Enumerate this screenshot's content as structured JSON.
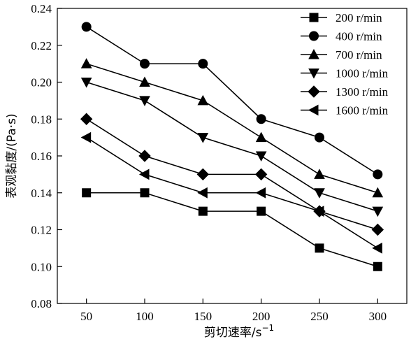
{
  "chart_data": {
    "type": "line",
    "xlabel": "剪切速率/s",
    "xlabel_sup": "−1",
    "ylabel": "表观黏度/(Pa·s)",
    "xlim": [
      25,
      325
    ],
    "ylim": [
      0.08,
      0.24
    ],
    "x": [
      50,
      100,
      150,
      200,
      250,
      300
    ],
    "x_tick_labels": [
      "50",
      "100",
      "150",
      "200",
      "250",
      "300"
    ],
    "y_ticks": [
      0.08,
      0.1,
      0.12,
      0.14,
      0.16,
      0.18,
      0.2,
      0.22,
      0.24
    ],
    "y_tick_labels": [
      "0.08",
      "0.10",
      "0.12",
      "0.14",
      "0.16",
      "0.18",
      "0.20",
      "0.22",
      "0.24"
    ],
    "grid": false,
    "legend_position": "top-right",
    "series": [
      {
        "name": "200 r/min",
        "marker": "square",
        "values": [
          0.14,
          0.14,
          0.13,
          0.13,
          0.11,
          0.1
        ]
      },
      {
        "name": "400 r/min",
        "marker": "circle",
        "values": [
          0.23,
          0.21,
          0.21,
          0.18,
          0.17,
          0.15
        ]
      },
      {
        "name": "700 r/min",
        "marker": "triangle-up",
        "values": [
          0.21,
          0.2,
          0.19,
          0.17,
          0.15,
          0.14
        ]
      },
      {
        "name": "1000 r/min",
        "marker": "triangle-down",
        "values": [
          0.2,
          0.19,
          0.17,
          0.16,
          0.14,
          0.13
        ]
      },
      {
        "name": "1300 r/min",
        "marker": "diamond",
        "values": [
          0.18,
          0.16,
          0.15,
          0.15,
          0.13,
          0.12
        ]
      },
      {
        "name": "1600 r/min",
        "marker": "triangle-left",
        "values": [
          0.17,
          0.15,
          0.14,
          0.14,
          0.13,
          0.11
        ]
      }
    ]
  }
}
